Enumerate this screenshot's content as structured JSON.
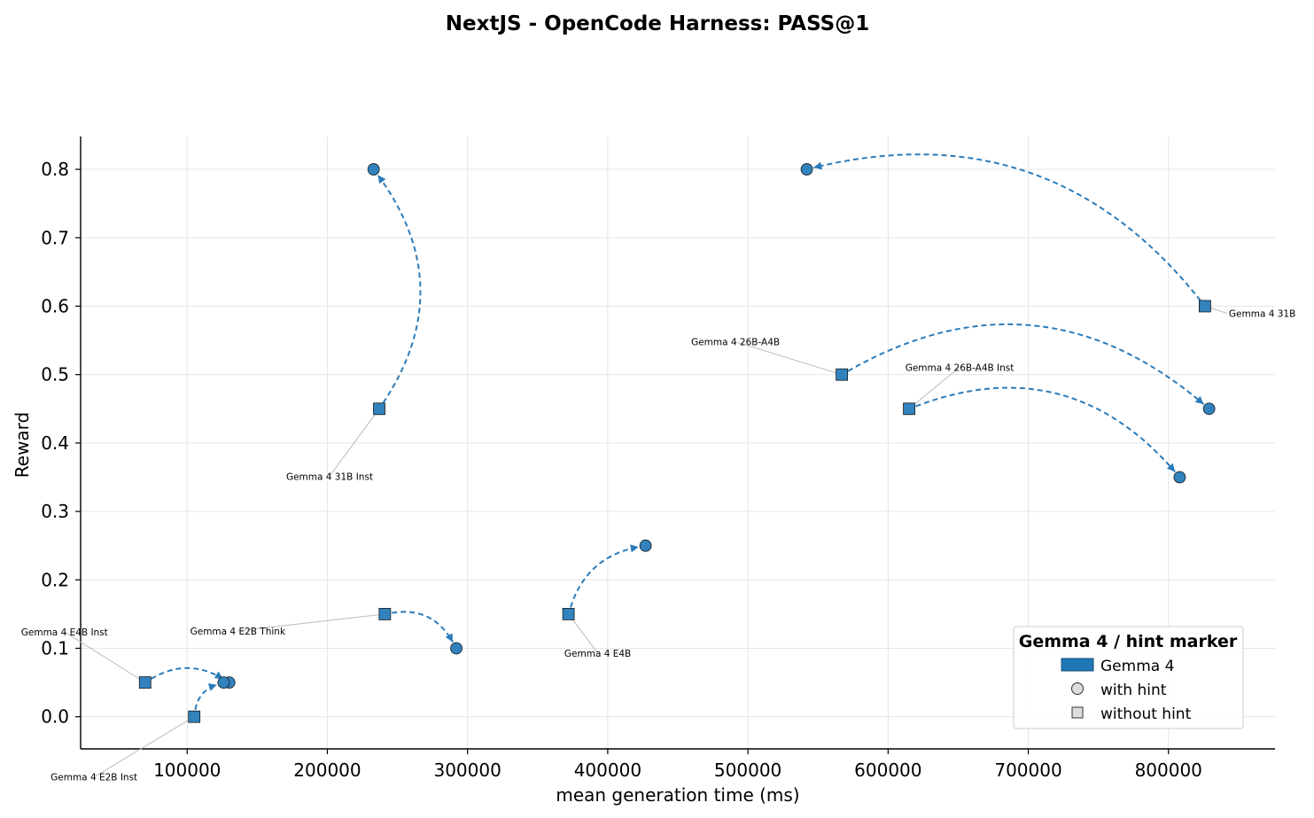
{
  "chart_data": {
    "type": "scatter",
    "title": "NextJS - OpenCode Harness: PASS@1",
    "xlabel": "mean generation time (ms)",
    "ylabel": "Reward",
    "xlim": [
      24000,
      876000
    ],
    "ylim": [
      -0.047,
      0.848
    ],
    "xticks": [
      {
        "value": 100000,
        "label": "100000"
      },
      {
        "value": 200000,
        "label": "200000"
      },
      {
        "value": 300000,
        "label": "300000"
      },
      {
        "value": 400000,
        "label": "400000"
      },
      {
        "value": 500000,
        "label": "500000"
      },
      {
        "value": 600000,
        "label": "600000"
      },
      {
        "value": 700000,
        "label": "700000"
      },
      {
        "value": 800000,
        "label": "800000"
      }
    ],
    "yticks": [
      {
        "value": 0.0,
        "label": "0.0"
      },
      {
        "value": 0.1,
        "label": "0.1"
      },
      {
        "value": 0.2,
        "label": "0.2"
      },
      {
        "value": 0.3,
        "label": "0.3"
      },
      {
        "value": 0.4,
        "label": "0.4"
      },
      {
        "value": 0.5,
        "label": "0.5"
      },
      {
        "value": 0.6,
        "label": "0.6"
      },
      {
        "value": 0.7,
        "label": "0.7"
      },
      {
        "value": 0.8,
        "label": "0.8"
      }
    ],
    "grid": true,
    "legend_position": "bottom-right",
    "legend": {
      "title": "Gemma 4 / hint marker",
      "family_label": "Gemma 4",
      "with_hint_label": "with hint",
      "without_hint_label": "without hint"
    },
    "colors": {
      "marker": "#3182bd",
      "arrow": "#2b7bba",
      "legend_patch": "#1f77b4",
      "grid": "#e6e6e6",
      "leader": "#bbbbbb"
    },
    "models": [
      {
        "name": "Gemma 4 31B",
        "without_hint": [
          826000,
          0.6
        ],
        "with_hint": [
          542000,
          0.8
        ],
        "curve": -0.32
      },
      {
        "name": "Gemma 4 31B Inst",
        "without_hint": [
          237000,
          0.45
        ],
        "with_hint": [
          233000,
          0.8
        ],
        "curve": -0.35
      },
      {
        "name": "Gemma 4 26B-A4B",
        "without_hint": [
          567000,
          0.5
        ],
        "with_hint": [
          829000,
          0.45
        ],
        "curve": 0.35
      },
      {
        "name": "Gemma 4 26B-A4B Inst",
        "without_hint": [
          615000,
          0.45
        ],
        "with_hint": [
          808000,
          0.35
        ],
        "curve": 0.35
      },
      {
        "name": "Gemma 4 E4B",
        "without_hint": [
          372000,
          0.15
        ],
        "with_hint": [
          427000,
          0.25
        ],
        "curve": 0.3
      },
      {
        "name": "Gemma 4 E2B Think",
        "without_hint": [
          241000,
          0.15
        ],
        "with_hint": [
          292000,
          0.1
        ],
        "curve": 0.35
      },
      {
        "name": "Gemma 4 E4B Inst",
        "without_hint": [
          70000,
          0.05
        ],
        "with_hint": [
          130000,
          0.05
        ],
        "curve": 0.3
      },
      {
        "name": "Gemma 4 E2B Inst",
        "without_hint": [
          105000,
          0.0
        ],
        "with_hint": [
          126000,
          0.05
        ],
        "curve": 0.3
      }
    ]
  }
}
